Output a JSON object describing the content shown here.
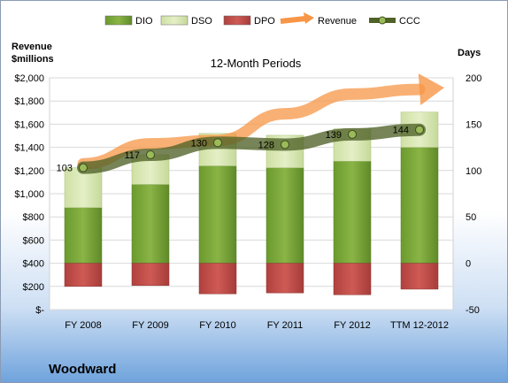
{
  "chart_data": {
    "type": "bar",
    "title": "12-Month Periods",
    "company": "Woodward",
    "left_axis_label_line1": "Revenue",
    "left_axis_label_line2": "$millions",
    "right_axis_label": "Days",
    "categories": [
      "FY 2008",
      "FY 2009",
      "FY 2010",
      "FY 2011",
      "FY 2012",
      "TTM 12-2012"
    ],
    "left_ylim": [
      0,
      2000
    ],
    "left_ticks": [
      0,
      200,
      400,
      600,
      800,
      1000,
      1200,
      1400,
      1600,
      1800,
      2000
    ],
    "left_tick_labels": [
      "$-",
      "$200",
      "$400",
      "$600",
      "$800",
      "$1,000",
      "$1,200",
      "$1,400",
      "$1,600",
      "$1,800",
      "$2,000"
    ],
    "right_ylim": [
      -50,
      200
    ],
    "right_ticks": [
      -50,
      0,
      50,
      100,
      150,
      200
    ],
    "right_tick_labels": [
      "-50",
      "0",
      "50",
      "100",
      "150",
      "200"
    ],
    "series": [
      {
        "name": "DIO",
        "values": [
          60,
          85,
          105,
          103,
          110,
          125
        ],
        "color": "#77a33a"
      },
      {
        "name": "DSO",
        "values": [
          43,
          32,
          35,
          35,
          35,
          38
        ],
        "color": "#d8e8b0"
      },
      {
        "name": "DPO",
        "values": [
          -25,
          -24,
          -33,
          -32,
          -34,
          -28
        ],
        "color": "#c0504d"
      },
      {
        "name": "Revenue",
        "values": [
          1258,
          1430,
          1460,
          1690,
          1860,
          1900
        ],
        "color": "#f79646"
      },
      {
        "name": "CCC",
        "values": [
          103,
          117,
          130,
          128,
          139,
          144
        ],
        "color": "#4f6228"
      }
    ],
    "ccc_labels": [
      "103",
      "117",
      "130",
      "128",
      "139",
      "144"
    ],
    "legend_position": "top"
  }
}
